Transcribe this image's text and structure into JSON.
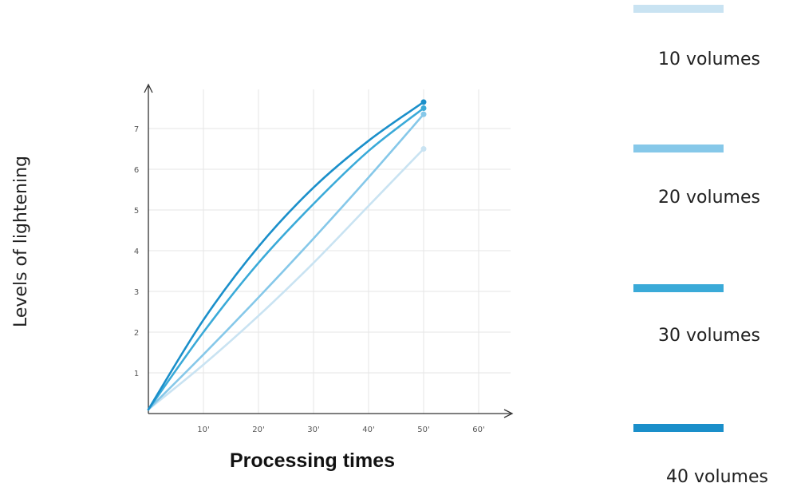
{
  "chart_data": {
    "type": "line",
    "title": "",
    "xlabel": "Processing times",
    "ylabel": "Levels of lightening",
    "x_ticks": [
      "10'",
      "20'",
      "30'",
      "40'",
      "50'",
      "60'"
    ],
    "y_ticks": [
      "1",
      "2",
      "3",
      "4",
      "5",
      "6",
      "7"
    ],
    "xlim": [
      0,
      60
    ],
    "ylim": [
      0,
      7.8
    ],
    "grid": true,
    "legend_position": "right",
    "series": [
      {
        "name": "10 volumes",
        "color": "#c9e3f2",
        "x": [
          0,
          10,
          20,
          30,
          40,
          50
        ],
        "y": [
          0.1,
          1.2,
          2.4,
          3.7,
          5.1,
          6.5
        ]
      },
      {
        "name": "20 volumes",
        "color": "#86c8e9",
        "x": [
          0,
          10,
          20,
          30,
          40,
          50
        ],
        "y": [
          0.1,
          1.45,
          2.85,
          4.3,
          5.8,
          7.35
        ]
      },
      {
        "name": "30 volumes",
        "color": "#3aaad8",
        "x": [
          0,
          10,
          20,
          30,
          40,
          50
        ],
        "y": [
          0.1,
          2.0,
          3.7,
          5.15,
          6.45,
          7.5
        ]
      },
      {
        "name": "40 volumes",
        "color": "#1a8fca",
        "x": [
          0,
          10,
          20,
          30,
          40,
          50
        ],
        "y": [
          0.1,
          2.3,
          4.1,
          5.55,
          6.7,
          7.65
        ]
      }
    ]
  },
  "legend": [
    {
      "label": "10 volumes",
      "color": "#c9e3f2"
    },
    {
      "label": "20 volumes",
      "color": "#86c8e9"
    },
    {
      "label": "30 volumes",
      "color": "#3aaad8"
    },
    {
      "label": "40 volumes",
      "color": "#1a8fca"
    }
  ]
}
